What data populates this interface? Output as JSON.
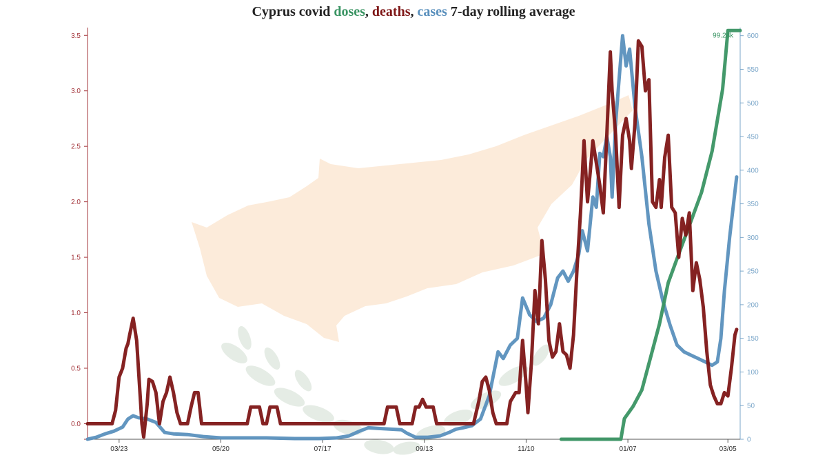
{
  "colors": {
    "doses": "#3a9463",
    "deaths": "#7e1616",
    "cases": "#5a90bd",
    "left_axis": "#a3343a",
    "right_axis": "#7aa6c9",
    "title": "#222222",
    "background_map": "#fbe7d3",
    "background_laurel": "#e3ebe3"
  },
  "title": {
    "prefix": "Cyprus covid ",
    "doses": "doses",
    "sep1": ", ",
    "deaths": "deaths",
    "sep2": ", ",
    "cases": "cases",
    "suffix": " 7-day rolling average"
  },
  "chart_data": {
    "type": "line",
    "title": "Cyprus covid doses, deaths, cases 7-day rolling average",
    "xlabel": "",
    "ylabel": "",
    "x_axis": {
      "type": "date",
      "range": [
        "2020-03-05",
        "2021-03-12"
      ],
      "tick_labels": [
        "03/23",
        "05/20",
        "07/17",
        "09/13",
        "11/10",
        "01/07",
        "03/05"
      ],
      "tick_dates": [
        "2020-03-23",
        "2020-05-20",
        "2020-07-17",
        "2020-09-13",
        "2020-11-10",
        "2021-01-07",
        "2021-03-05"
      ]
    },
    "y_left": {
      "series": "deaths",
      "range": [
        -0.14,
        3.57
      ],
      "ticks": [
        0.0,
        0.5,
        1.0,
        1.5,
        2.0,
        2.5,
        3.0,
        3.5
      ],
      "tick_labels": [
        "0.0",
        "0.5",
        "1.0",
        "1.5",
        "2.0",
        "2.5",
        "3.0",
        "3.5"
      ]
    },
    "y_right": {
      "series": "cases",
      "range": [
        0,
        612
      ],
      "ticks": [
        0,
        50,
        100,
        150,
        200,
        250,
        300,
        350,
        400,
        450,
        500,
        550,
        600
      ],
      "tick_labels": [
        "0",
        "50",
        "100",
        "150",
        "200",
        "250",
        "300",
        "350",
        "400",
        "450",
        "500",
        "550",
        "600"
      ]
    },
    "doses_axis": {
      "series": "doses",
      "range": [
        0,
        100000
      ],
      "max_label": "99.28k"
    },
    "grid": false,
    "legend": "none (series names colored in title)",
    "series": [
      {
        "name": "deaths",
        "axis": "left",
        "points": [
          [
            "2020-03-05",
            0.0
          ],
          [
            "2020-03-19",
            0.0
          ],
          [
            "2020-03-21",
            0.12
          ],
          [
            "2020-03-23",
            0.42
          ],
          [
            "2020-03-25",
            0.5
          ],
          [
            "2020-03-27",
            0.68
          ],
          [
            "2020-03-28",
            0.72
          ],
          [
            "2020-03-29",
            0.8
          ],
          [
            "2020-03-31",
            0.95
          ],
          [
            "2020-04-02",
            0.75
          ],
          [
            "2020-04-04",
            0.25
          ],
          [
            "2020-04-05",
            0.0
          ],
          [
            "2020-04-06",
            -0.12
          ],
          [
            "2020-04-08",
            0.18
          ],
          [
            "2020-04-09",
            0.4
          ],
          [
            "2020-04-11",
            0.38
          ],
          [
            "2020-04-13",
            0.28
          ],
          [
            "2020-04-15",
            0.0
          ],
          [
            "2020-04-17",
            0.2
          ],
          [
            "2020-04-19",
            0.28
          ],
          [
            "2020-04-21",
            0.42
          ],
          [
            "2020-04-23",
            0.28
          ],
          [
            "2020-04-25",
            0.1
          ],
          [
            "2020-04-27",
            0.0
          ],
          [
            "2020-05-01",
            0.0
          ],
          [
            "2020-05-03",
            0.15
          ],
          [
            "2020-05-05",
            0.28
          ],
          [
            "2020-05-07",
            0.28
          ],
          [
            "2020-05-09",
            0.0
          ],
          [
            "2020-06-04",
            0.0
          ],
          [
            "2020-06-06",
            0.15
          ],
          [
            "2020-06-11",
            0.15
          ],
          [
            "2020-06-13",
            0.0
          ],
          [
            "2020-06-15",
            0.0
          ],
          [
            "2020-06-17",
            0.15
          ],
          [
            "2020-06-21",
            0.15
          ],
          [
            "2020-06-23",
            0.0
          ],
          [
            "2020-08-21",
            0.0
          ],
          [
            "2020-08-23",
            0.15
          ],
          [
            "2020-08-28",
            0.15
          ],
          [
            "2020-08-30",
            0.0
          ],
          [
            "2020-09-06",
            0.0
          ],
          [
            "2020-09-08",
            0.15
          ],
          [
            "2020-09-10",
            0.15
          ],
          [
            "2020-09-12",
            0.22
          ],
          [
            "2020-09-14",
            0.15
          ],
          [
            "2020-09-18",
            0.15
          ],
          [
            "2020-09-20",
            0.0
          ],
          [
            "2020-10-11",
            0.0
          ],
          [
            "2020-10-14",
            0.2
          ],
          [
            "2020-10-16",
            0.38
          ],
          [
            "2020-10-18",
            0.42
          ],
          [
            "2020-10-20",
            0.3
          ],
          [
            "2020-10-22",
            0.1
          ],
          [
            "2020-10-24",
            0.0
          ],
          [
            "2020-10-30",
            0.0
          ],
          [
            "2020-11-01",
            0.2
          ],
          [
            "2020-11-04",
            0.28
          ],
          [
            "2020-11-06",
            0.28
          ],
          [
            "2020-11-08",
            0.75
          ],
          [
            "2020-11-10",
            0.35
          ],
          [
            "2020-11-11",
            0.1
          ],
          [
            "2020-11-13",
            0.55
          ],
          [
            "2020-11-15",
            1.2
          ],
          [
            "2020-11-17",
            0.9
          ],
          [
            "2020-11-19",
            1.65
          ],
          [
            "2020-11-21",
            1.3
          ],
          [
            "2020-11-23",
            0.75
          ],
          [
            "2020-11-25",
            0.6
          ],
          [
            "2020-11-27",
            0.65
          ],
          [
            "2020-11-29",
            0.9
          ],
          [
            "2020-12-01",
            0.65
          ],
          [
            "2020-12-03",
            0.62
          ],
          [
            "2020-12-05",
            0.5
          ],
          [
            "2020-12-07",
            0.8
          ],
          [
            "2020-12-09",
            1.4
          ],
          [
            "2020-12-11",
            1.9
          ],
          [
            "2020-12-13",
            2.55
          ],
          [
            "2020-12-15",
            2.0
          ],
          [
            "2020-12-17",
            2.35
          ],
          [
            "2020-12-18",
            2.55
          ],
          [
            "2020-12-20",
            2.35
          ],
          [
            "2020-12-22",
            2.15
          ],
          [
            "2020-12-24",
            1.9
          ],
          [
            "2020-12-26",
            2.6
          ],
          [
            "2020-12-28",
            3.35
          ],
          [
            "2020-12-29",
            3.0
          ],
          [
            "2020-12-31",
            2.6
          ],
          [
            "2021-01-02",
            1.95
          ],
          [
            "2021-01-04",
            2.6
          ],
          [
            "2021-01-06",
            2.75
          ],
          [
            "2021-01-08",
            2.55
          ],
          [
            "2021-01-09",
            2.3
          ],
          [
            "2021-01-11",
            2.7
          ],
          [
            "2021-01-13",
            3.45
          ],
          [
            "2021-01-15",
            3.4
          ],
          [
            "2021-01-17",
            3.0
          ],
          [
            "2021-01-19",
            3.1
          ],
          [
            "2021-01-21",
            2.0
          ],
          [
            "2021-01-23",
            1.95
          ],
          [
            "2021-01-25",
            2.2
          ],
          [
            "2021-01-26",
            1.95
          ],
          [
            "2021-01-28",
            2.4
          ],
          [
            "2021-01-30",
            2.6
          ],
          [
            "2021-02-01",
            1.95
          ],
          [
            "2021-02-03",
            1.9
          ],
          [
            "2021-02-05",
            1.5
          ],
          [
            "2021-02-07",
            1.85
          ],
          [
            "2021-02-09",
            1.7
          ],
          [
            "2021-02-11",
            1.9
          ],
          [
            "2021-02-13",
            1.2
          ],
          [
            "2021-02-15",
            1.45
          ],
          [
            "2021-02-17",
            1.3
          ],
          [
            "2021-02-19",
            1.05
          ],
          [
            "2021-02-21",
            0.65
          ],
          [
            "2021-02-23",
            0.35
          ],
          [
            "2021-02-25",
            0.25
          ],
          [
            "2021-02-27",
            0.18
          ],
          [
            "2021-03-01",
            0.18
          ],
          [
            "2021-03-03",
            0.28
          ],
          [
            "2021-03-05",
            0.25
          ],
          [
            "2021-03-07",
            0.5
          ],
          [
            "2021-03-09",
            0.8
          ],
          [
            "2021-03-10",
            0.85
          ]
        ]
      },
      {
        "name": "cases",
        "axis": "right",
        "points": [
          [
            "2020-03-05",
            0
          ],
          [
            "2020-03-10",
            3
          ],
          [
            "2020-03-15",
            8
          ],
          [
            "2020-03-20",
            12
          ],
          [
            "2020-03-25",
            18
          ],
          [
            "2020-03-28",
            30
          ],
          [
            "2020-03-31",
            35
          ],
          [
            "2020-04-03",
            32
          ],
          [
            "2020-04-08",
            30
          ],
          [
            "2020-04-13",
            25
          ],
          [
            "2020-04-18",
            10
          ],
          [
            "2020-04-23",
            8
          ],
          [
            "2020-05-01",
            7
          ],
          [
            "2020-05-10",
            4
          ],
          [
            "2020-05-20",
            2
          ],
          [
            "2020-06-01",
            2
          ],
          [
            "2020-06-15",
            2
          ],
          [
            "2020-07-01",
            1
          ],
          [
            "2020-07-15",
            1
          ],
          [
            "2020-07-25",
            2
          ],
          [
            "2020-08-01",
            5
          ],
          [
            "2020-08-07",
            12
          ],
          [
            "2020-08-12",
            17
          ],
          [
            "2020-08-18",
            16
          ],
          [
            "2020-08-25",
            15
          ],
          [
            "2020-08-31",
            14
          ],
          [
            "2020-09-03",
            9
          ],
          [
            "2020-09-08",
            3
          ],
          [
            "2020-09-15",
            3
          ],
          [
            "2020-09-22",
            5
          ],
          [
            "2020-09-27",
            10
          ],
          [
            "2020-10-01",
            15
          ],
          [
            "2020-10-05",
            17
          ],
          [
            "2020-10-10",
            20
          ],
          [
            "2020-10-15",
            30
          ],
          [
            "2020-10-20",
            65
          ],
          [
            "2020-10-25",
            130
          ],
          [
            "2020-10-28",
            120
          ],
          [
            "2020-11-01",
            140
          ],
          [
            "2020-11-05",
            150
          ],
          [
            "2020-11-08",
            210
          ],
          [
            "2020-11-12",
            185
          ],
          [
            "2020-11-16",
            175
          ],
          [
            "2020-11-20",
            180
          ],
          [
            "2020-11-24",
            200
          ],
          [
            "2020-11-28",
            240
          ],
          [
            "2020-12-01",
            250
          ],
          [
            "2020-12-04",
            235
          ],
          [
            "2020-12-07",
            250
          ],
          [
            "2020-12-10",
            275
          ],
          [
            "2020-12-12",
            310
          ],
          [
            "2020-12-15",
            280
          ],
          [
            "2020-12-18",
            360
          ],
          [
            "2020-12-20",
            345
          ],
          [
            "2020-12-22",
            425
          ],
          [
            "2020-12-24",
            420
          ],
          [
            "2020-12-26",
            450
          ],
          [
            "2020-12-28",
            420
          ],
          [
            "2020-12-29",
            360
          ],
          [
            "2020-12-31",
            470
          ],
          [
            "2021-01-02",
            535
          ],
          [
            "2021-01-04",
            600
          ],
          [
            "2021-01-06",
            555
          ],
          [
            "2021-01-08",
            580
          ],
          [
            "2021-01-11",
            495
          ],
          [
            "2021-01-15",
            420
          ],
          [
            "2021-01-19",
            320
          ],
          [
            "2021-01-23",
            250
          ],
          [
            "2021-01-27",
            205
          ],
          [
            "2021-01-31",
            170
          ],
          [
            "2021-02-04",
            140
          ],
          [
            "2021-02-08",
            130
          ],
          [
            "2021-02-12",
            125
          ],
          [
            "2021-02-16",
            120
          ],
          [
            "2021-02-20",
            115
          ],
          [
            "2021-02-24",
            110
          ],
          [
            "2021-02-27",
            115
          ],
          [
            "2021-03-01",
            150
          ],
          [
            "2021-03-03",
            220
          ],
          [
            "2021-03-06",
            300
          ],
          [
            "2021-03-10",
            390
          ]
        ]
      },
      {
        "name": "doses",
        "axis": "doses",
        "points": [
          [
            "2020-11-30",
            0
          ],
          [
            "2021-01-03",
            0
          ],
          [
            "2021-01-05",
            5000
          ],
          [
            "2021-01-10",
            8000
          ],
          [
            "2021-01-15",
            12000
          ],
          [
            "2021-01-20",
            20000
          ],
          [
            "2021-01-25",
            28000
          ],
          [
            "2021-01-30",
            38000
          ],
          [
            "2021-02-05",
            45000
          ],
          [
            "2021-02-12",
            53000
          ],
          [
            "2021-02-18",
            60000
          ],
          [
            "2021-02-24",
            70000
          ],
          [
            "2021-03-02",
            85000
          ],
          [
            "2021-03-05",
            99280
          ],
          [
            "2021-03-12",
            99280
          ]
        ]
      }
    ],
    "annotations": [
      "99.28k"
    ]
  }
}
